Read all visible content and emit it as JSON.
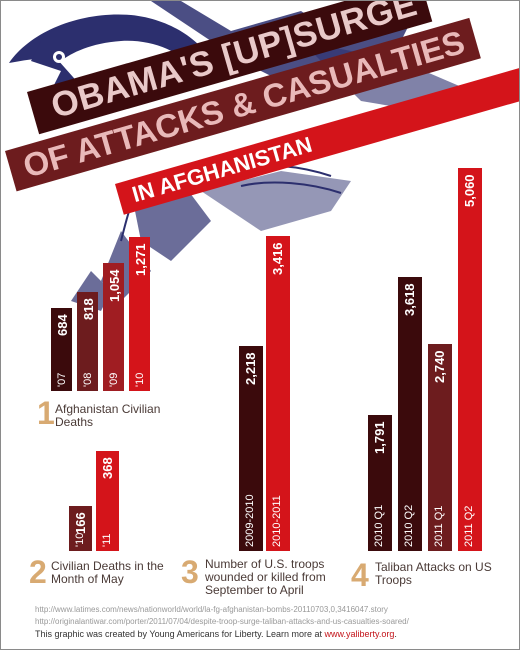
{
  "header": {
    "title_line1": "OBAMA'S [UP]SURGE",
    "title_line2": "OF ATTACKS & CASUALTIES",
    "title_line3": "IN AFGHANISTAN"
  },
  "colors": {
    "dark": "#3b0a0c",
    "medium": "#6d1c1e",
    "mid_red": "#a01d22",
    "bright": "#d4141a",
    "number_gold": "#d8aa72"
  },
  "chart_data": [
    {
      "type": "bar",
      "number": "1",
      "title": "Afghanistan Civilian Deaths",
      "categories": [
        "'07",
        "'08",
        "'09",
        "'10"
      ],
      "values": [
        684,
        818,
        1054,
        1271
      ],
      "value_labels": [
        "684",
        "818",
        "1,054",
        "1,271"
      ]
    },
    {
      "type": "bar",
      "number": "2",
      "title": "Civilian Deaths in the Month of May",
      "categories": [
        "'10",
        "'11"
      ],
      "values": [
        166,
        368
      ],
      "value_labels": [
        "166",
        "368"
      ]
    },
    {
      "type": "bar",
      "number": "3",
      "title": "Number of U.S. troops wounded or killed from September to April",
      "categories": [
        "2009-2010",
        "2010-2011"
      ],
      "values": [
        2218,
        3416
      ],
      "value_labels": [
        "2,218",
        "3,416"
      ]
    },
    {
      "type": "bar",
      "number": "4",
      "title": "Taliban Attacks on US Troops",
      "categories": [
        "2010 Q1",
        "2010 Q2",
        "2011 Q1",
        "2011 Q2"
      ],
      "values": [
        1791,
        3618,
        2740,
        5060
      ],
      "value_labels": [
        "1,791",
        "3,618",
        "2,740",
        "5,060"
      ]
    }
  ],
  "footer": {
    "source1": "http://www.latimes.com/news/nationworld/world/la-fg-afghanistan-bombs-20110703,0,3416047.story",
    "source2": "http://originalantiwar.com/porter/2011/07/04/despite-troop-surge-taliban-attacks-and-us-casualties-soared/",
    "credit": "This graphic was created by Young Americans for Liberty.  Learn more at ",
    "credit_link": "www.yaliberty.org",
    "credit_end": "."
  }
}
